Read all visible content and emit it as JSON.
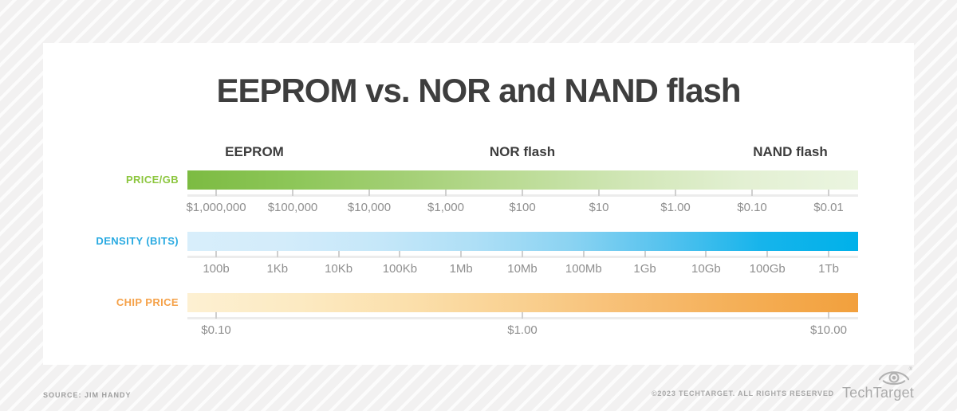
{
  "chart_data": {
    "type": "bar",
    "title": "EEPROM vs. NOR and NAND flash",
    "columns": [
      "EEPROM",
      "NOR flash",
      "NAND flash"
    ],
    "rows": [
      {
        "label": "PRICE/GB",
        "label_color": "#8cc63e",
        "gradient": [
          "#7cbb42",
          "#8ec75a",
          "#a5d077",
          "#bcdc97",
          "#d2e7b8",
          "#e3f0d3",
          "#ebf5e0"
        ],
        "ticks": [
          "$1,000,000",
          "$100,000",
          "$10,000",
          "$1,000",
          "$100",
          "$10",
          "$1.00",
          "$0.10",
          "$0.01"
        ]
      },
      {
        "label": "DENSITY (BITS)",
        "label_color": "#29aae1",
        "gradient": [
          "#d8eefb",
          "#d3ecfa",
          "#c5e7f9",
          "#aedff6",
          "#8bd3f2",
          "#54c2ee",
          "#16b4eb",
          "#00b1ea"
        ],
        "ticks": [
          "100b",
          "1Kb",
          "10Kb",
          "100Kb",
          "1Mb",
          "10Mb",
          "100Mb",
          "1Gb",
          "10Gb",
          "100Gb",
          "1Tb"
        ]
      },
      {
        "label": "CHIP PRICE",
        "label_color": "#f5a148",
        "gradient": [
          "#fdf0d2",
          "#fceac2",
          "#fbdfab",
          "#f9d090",
          "#f7bd72",
          "#f4ae55",
          "#f2a03d"
        ],
        "ticks": [
          "$0.10",
          "$1.00",
          "$10.00"
        ]
      }
    ]
  },
  "footer": {
    "source": "SOURCE: JIM HANDY",
    "copyright": "©2023 TECHTARGET. ALL RIGHTS RESERVED",
    "logo_text": "TechTarget"
  }
}
